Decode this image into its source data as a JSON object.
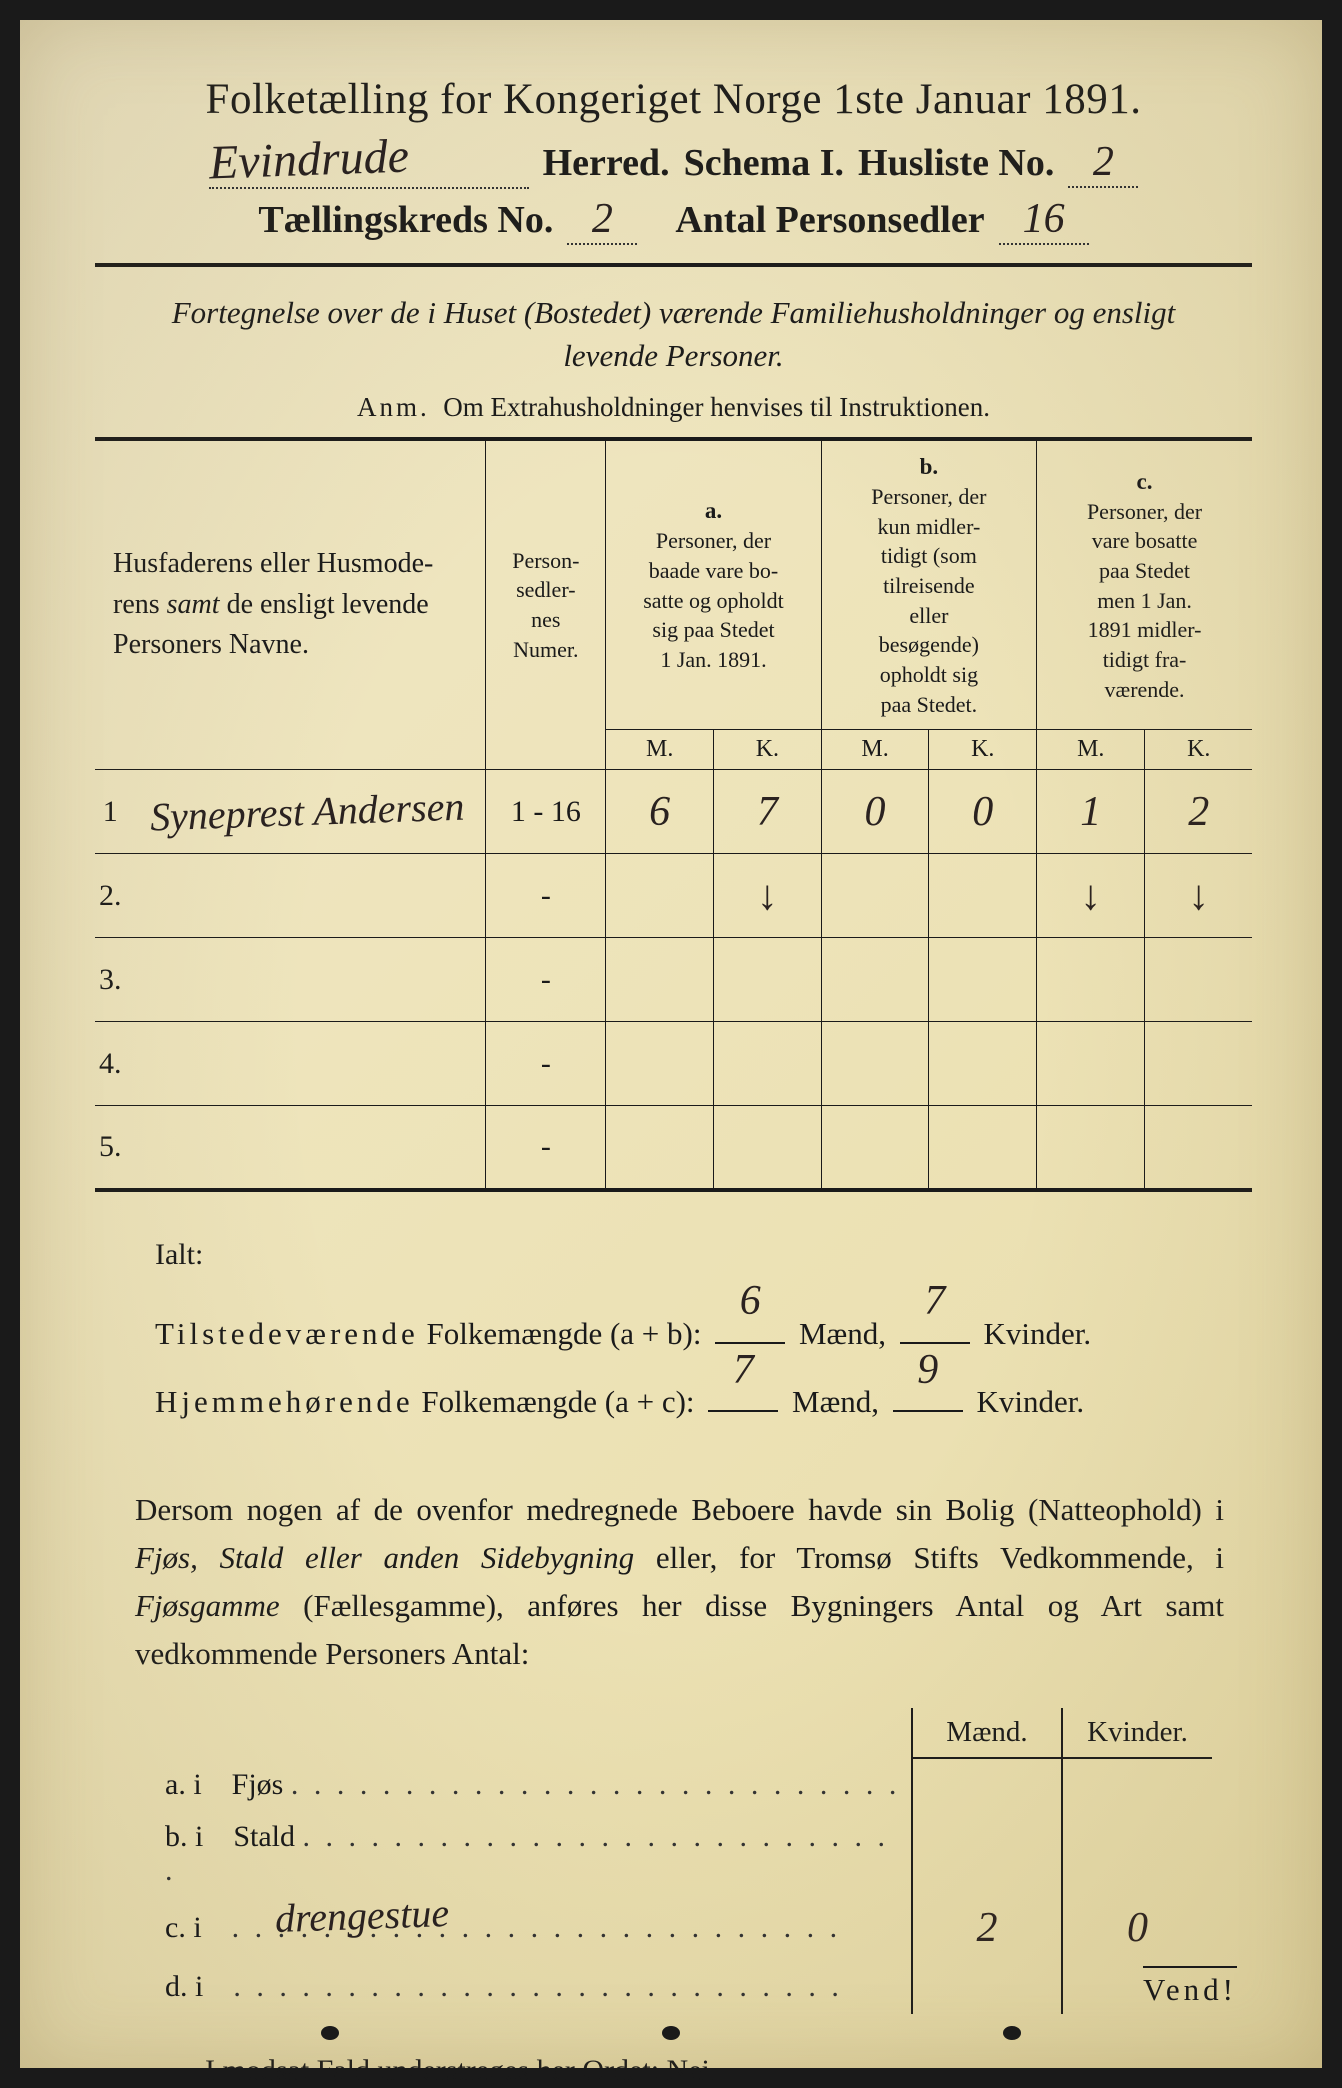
{
  "header": {
    "title": "Folketælling for Kongeriget Norge 1ste Januar 1891.",
    "herred_hw": "Evindrude",
    "herred_label": "Herred.",
    "schema_label": "Schema I.",
    "husliste_label": "Husliste No.",
    "husliste_hw": "2",
    "tkreds_label": "Tællingskreds No.",
    "tkreds_hw": "2",
    "antal_label": "Antal Personsedler",
    "antal_hw": "16"
  },
  "subtitle": {
    "line1": "Fortegnelse over de i Huset (Bostedet) værende Familiehusholdninger og ensligt",
    "line2": "levende Personer."
  },
  "anm": {
    "prefix": "Anm.",
    "text": "Om Extrahusholdninger henvises til Instruktionen."
  },
  "table": {
    "col_names": "Husfaderens eller Husmoderens samt de ensligt levende Personers Navne.",
    "col_numer": "Person-sedler-nes Numer.",
    "col_a_label": "a.",
    "col_a": "Personer, der baade vare bosatte og opholdt sig paa Stedet 1 Jan. 1891.",
    "col_b_label": "b.",
    "col_b": "Personer, der kun midler-tidigt (som tilreisende eller besøgende) opholdt sig paa Stedet.",
    "col_c_label": "c.",
    "col_c": "Personer, der vare bosatte paa Stedet men 1 Jan. 1891 midler-tidigt fra-værende.",
    "M": "M.",
    "K": "K.",
    "rows": [
      {
        "n": "1",
        "name_hw": "Syneprest Andersen",
        "numer": "1 - 16",
        "aM": "6",
        "aK": "7",
        "bM": "0",
        "bK": "0",
        "cM": "1",
        "cK": "2"
      },
      {
        "n": "2.",
        "name_hw": "",
        "numer": "-",
        "aM": "",
        "aK": "↓",
        "bM": "",
        "bK": "",
        "cM": "↓",
        "cK": "↓"
      },
      {
        "n": "3.",
        "name_hw": "",
        "numer": "-",
        "aM": "",
        "aK": "",
        "bM": "",
        "bK": "",
        "cM": "",
        "cK": ""
      },
      {
        "n": "4.",
        "name_hw": "",
        "numer": "-",
        "aM": "",
        "aK": "",
        "bM": "",
        "bK": "",
        "cM": "",
        "cK": ""
      },
      {
        "n": "5.",
        "name_hw": "",
        "numer": "-",
        "aM": "",
        "aK": "",
        "bM": "",
        "bK": "",
        "cM": "",
        "cK": ""
      }
    ]
  },
  "totals": {
    "ialt": "Ialt:",
    "tilstede": "Tilstedeværende Folkemængde (a + b):",
    "hjemme": "Hjemmehørende Folkemængde (a + c):",
    "maend": "Mænd,",
    "kvinder": "Kvinder.",
    "t_m": "6",
    "t_k": "7",
    "h_m": "7",
    "h_k": "9"
  },
  "body": {
    "text": "Dersom nogen af de ovenfor medregnede Beboere havde sin Bolig (Natteophold) i Fjøs, Stald eller anden Sidebygning eller, for Tromsø Stifts Vedkommende, i Fjøsgamme (Fællesgamme), anføres her disse Bygningers Antal og Art samt vedkommende Personers Antal:"
  },
  "lower": {
    "maend": "Mænd.",
    "kvinder": "Kvinder.",
    "rows": [
      {
        "lbl": "a.  i",
        "name": "Fjøs",
        "hw": "",
        "m": "",
        "k": ""
      },
      {
        "lbl": "b.  i",
        "name": "Stald",
        "hw": "",
        "m": "",
        "k": ""
      },
      {
        "lbl": "c.  i",
        "name": "",
        "hw": "drengestue",
        "m": "2",
        "k": "0"
      },
      {
        "lbl": "d.  i",
        "name": "",
        "hw": "",
        "m": "",
        "k": ""
      }
    ]
  },
  "footer": {
    "line": "I modsat Fald understreges her Ordet: Nei.",
    "vend": "Vend!"
  },
  "colors": {
    "paper": "#ede3b8",
    "ink": "#1a1a1a",
    "hw": "#2a2220"
  }
}
